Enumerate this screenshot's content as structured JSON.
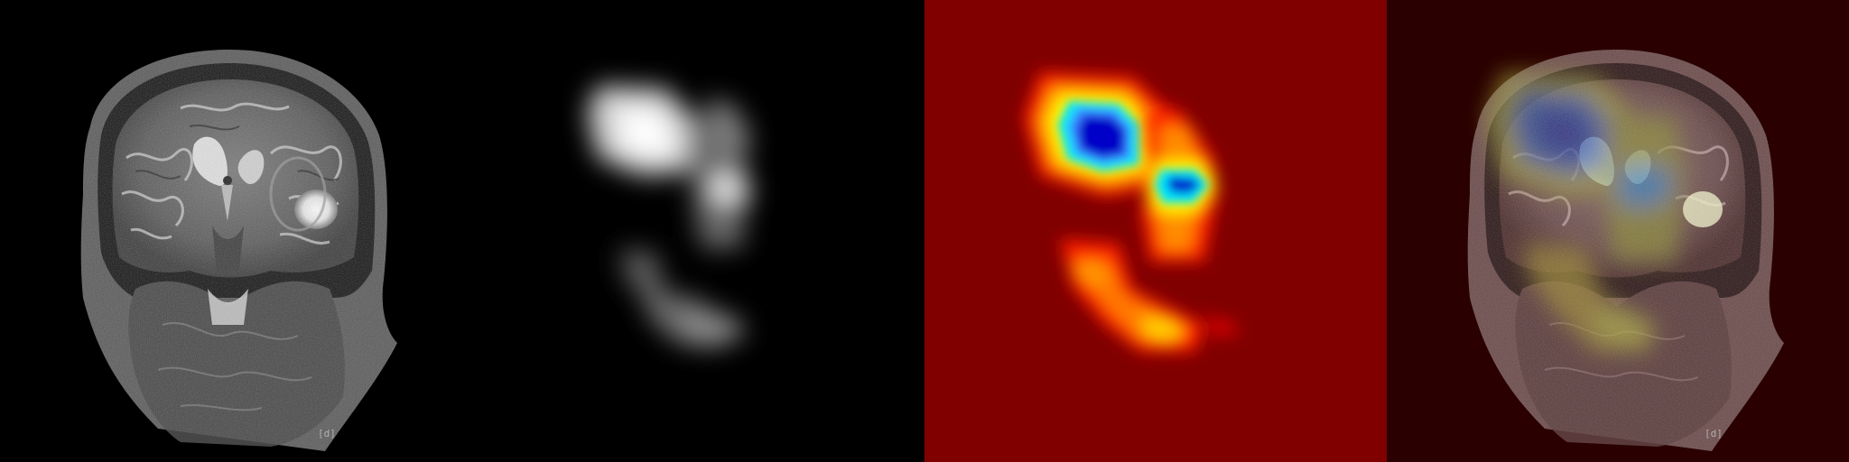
{
  "panels": [
    {
      "id": "mri",
      "marker": "[d]"
    },
    {
      "id": "activation-grayscale"
    },
    {
      "id": "heatmap-jet"
    },
    {
      "id": "overlay",
      "marker": "[d]"
    }
  ],
  "colors": {
    "background": "#000000",
    "jet_background": "#800000",
    "overlay_background": "#2a0000"
  }
}
